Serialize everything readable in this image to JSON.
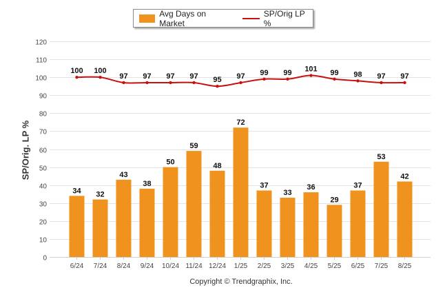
{
  "chart_data": {
    "type": "bar",
    "categories": [
      "6/24",
      "7/24",
      "8/24",
      "9/24",
      "10/24",
      "11/24",
      "12/24",
      "1/25",
      "2/25",
      "3/25",
      "4/25",
      "5/25",
      "6/25",
      "7/25",
      "8/25"
    ],
    "series": [
      {
        "name": "Avg Days on Market",
        "type": "bar",
        "color": "#f0921e",
        "values": [
          34,
          32,
          43,
          38,
          50,
          59,
          48,
          72,
          37,
          33,
          36,
          29,
          37,
          53,
          42
        ]
      },
      {
        "name": "SP/Orig LP %",
        "type": "line",
        "color": "#c81010",
        "values": [
          100,
          100,
          97,
          97,
          97,
          97,
          95,
          97,
          99,
          99,
          101,
          99,
          98,
          97,
          97
        ]
      }
    ],
    "ylabel": "SP/Orig. LP %",
    "xlabel": "",
    "ylim": [
      0,
      120
    ],
    "yticks": [
      0,
      10,
      20,
      30,
      40,
      50,
      60,
      70,
      80,
      90,
      100,
      110,
      120
    ],
    "grid": true,
    "legend": "top-center",
    "copyright": "Copyright © Trendgraphix, Inc."
  }
}
